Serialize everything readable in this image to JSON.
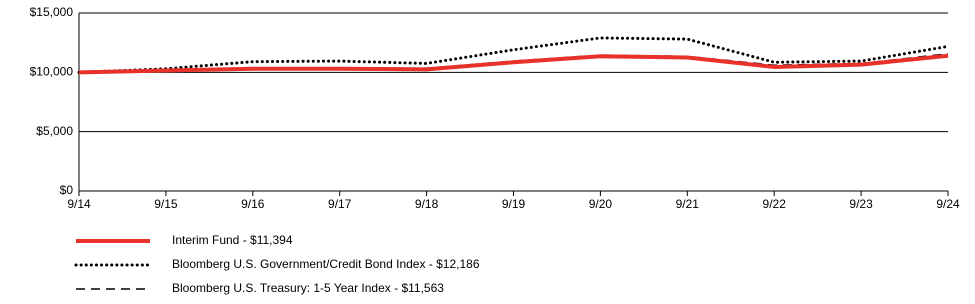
{
  "chart_data": {
    "type": "line",
    "categories": [
      "9/14",
      "9/15",
      "9/16",
      "9/17",
      "9/18",
      "9/19",
      "9/20",
      "9/21",
      "9/22",
      "9/23",
      "9/24"
    ],
    "series": [
      {
        "name": "Interim Fund - $11,394",
        "color": "#e8312a",
        "dash": "solid",
        "values": [
          10000,
          10150,
          10300,
          10300,
          10250,
          10850,
          11350,
          11250,
          10450,
          10650,
          11394
        ]
      },
      {
        "name": "Bloomberg U.S. Government/Credit Bond Index - $12,186",
        "color": "#000000",
        "dash": "dotted",
        "values": [
          10000,
          10300,
          10900,
          10950,
          10750,
          11900,
          12900,
          12800,
          10850,
          10950,
          12186
        ]
      },
      {
        "name": "Bloomberg U.S. Treasury: 1-5 Year Index - $11,563",
        "color": "#000000",
        "dash": "dashed",
        "values": [
          10000,
          10150,
          10300,
          10350,
          10350,
          10950,
          11450,
          11350,
          10600,
          10750,
          11563
        ]
      }
    ],
    "ylim": [
      0,
      15000
    ],
    "yticks": [
      {
        "value": 0,
        "label": "$0"
      },
      {
        "value": 5000,
        "label": "$5,000"
      },
      {
        "value": 10000,
        "label": "$10,000"
      },
      {
        "value": 15000,
        "label": "$15,000"
      }
    ],
    "grid": true,
    "legend": "bottom-left"
  }
}
